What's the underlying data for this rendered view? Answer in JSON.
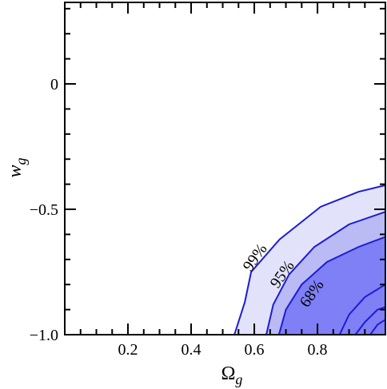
{
  "chart_data": {
    "type": "contour",
    "xlabel": {
      "text": "Ω",
      "subscript": "g"
    },
    "ylabel": {
      "text": "w",
      "subscript": "g"
    },
    "xlim": [
      0,
      1.015
    ],
    "ylim": [
      -1,
      0.325
    ],
    "xticks": [
      0.2,
      0.4,
      0.6,
      0.8
    ],
    "yticks": [
      0,
      {
        "value": -0.5,
        "label": "−0.5"
      },
      {
        "value": -1,
        "label": "−1.0"
      }
    ],
    "xticks_minor": [
      0.05,
      0.1,
      0.15,
      0.25,
      0.3,
      0.35,
      0.45,
      0.5,
      0.55,
      0.65,
      0.7,
      0.75,
      0.85,
      0.9,
      0.95
    ],
    "yticks_minor": [
      0.3,
      0.2,
      0.1,
      -0.1,
      -0.2,
      -0.3,
      -0.4,
      -0.6,
      -0.7,
      -0.8,
      -0.9
    ],
    "line_color": "#1c1cd6",
    "series": [
      {
        "name": "99%",
        "color": "#e2e2fb",
        "x": [
          0.537,
          0.57,
          0.59,
          0.68,
          0.81,
          0.93,
          1.015
        ],
        "y": [
          -1,
          -0.87,
          -0.75,
          -0.62,
          -0.49,
          -0.43,
          -0.404
        ]
      },
      {
        "name": "95%",
        "color": "#babaf4",
        "x": [
          0.638,
          0.66,
          0.71,
          0.79,
          0.9,
          1.015
        ],
        "y": [
          -1,
          -0.88,
          -0.76,
          -0.65,
          -0.56,
          -0.51
        ]
      },
      {
        "name": "68%",
        "color": "#7f7ff6",
        "x": [
          0.678,
          0.7,
          0.75,
          0.83,
          0.93,
          1.015
        ],
        "y": [
          -1,
          -0.9,
          -0.8,
          -0.71,
          -0.65,
          -0.61
        ]
      },
      {
        "x": [
          0.87,
          0.9,
          0.95,
          1.015
        ],
        "y": [
          -1,
          -0.92,
          -0.85,
          -0.8
        ]
      },
      {
        "x": [
          0.92,
          0.95,
          0.99,
          1.015
        ],
        "y": [
          -1,
          -0.95,
          -0.9,
          -0.89
        ]
      },
      {
        "x": [
          0.967,
          0.99,
          1.015
        ],
        "y": [
          -1,
          -0.96,
          -0.94
        ]
      }
    ]
  }
}
